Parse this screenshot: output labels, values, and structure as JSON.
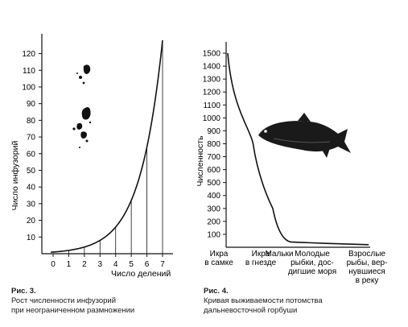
{
  "figures": [
    {
      "caption_label": "Рис. 3.",
      "caption_lines": [
        "Рост численности инфузорий",
        "при неограниченном размножении"
      ]
    },
    {
      "caption_label": "Рис. 4.",
      "caption_lines": [
        "Кривая выживаемости потомства",
        "дальневосточной горбуши"
      ]
    }
  ],
  "colors": {
    "ink": "#111111",
    "paper": "#ffffff"
  },
  "chart_data": [
    {
      "type": "line",
      "title": "",
      "xlabel": "Число делений",
      "ylabel": "Число инфузорий",
      "xlim": [
        0,
        7
      ],
      "ylim": [
        0,
        128
      ],
      "x_ticks": [
        "0",
        "1",
        "2",
        "3",
        "4",
        "5",
        "6",
        "7"
      ],
      "y_ticks": [
        "10",
        "20",
        "30",
        "40",
        "50",
        "60",
        "70",
        "80",
        "90",
        "100",
        "110",
        "120"
      ],
      "x": [
        0,
        1,
        2,
        3,
        4,
        5,
        6,
        7
      ],
      "values": [
        1,
        2,
        4,
        8,
        16,
        32,
        64,
        128
      ],
      "vertical_drop_lines": true,
      "grid": false
    },
    {
      "type": "line",
      "title": "",
      "xlabel": "",
      "ylabel": "Численность",
      "ylim": [
        0,
        1550
      ],
      "y_ticks": [
        "100",
        "200",
        "300",
        "400",
        "500",
        "600",
        "700",
        "800",
        "900",
        "1000",
        "1100",
        "1200",
        "1300",
        "1400",
        "1500"
      ],
      "categories": [
        "Икра в самке",
        "Икра в гнезде",
        "Мальки",
        "Молодые рыбки, достигшие моря",
        "Взрослые рыбы, вернувшиеся в реку"
      ],
      "category_label_lines": [
        [
          "Икра",
          "в самке"
        ],
        [
          "Икра",
          "в гнезде"
        ],
        [
          "Мальки"
        ],
        [
          "Молодые",
          "рыбки, дос-",
          "дигшие моря"
        ],
        [
          "Взрослые",
          "рыбы, вер-",
          "нувшиеся",
          "в реку"
        ]
      ],
      "x": [
        0,
        0.9,
        1.6,
        2.3,
        3.5,
        5.0
      ],
      "values": [
        1500,
        800,
        300,
        40,
        30,
        20
      ],
      "grid": false
    }
  ]
}
